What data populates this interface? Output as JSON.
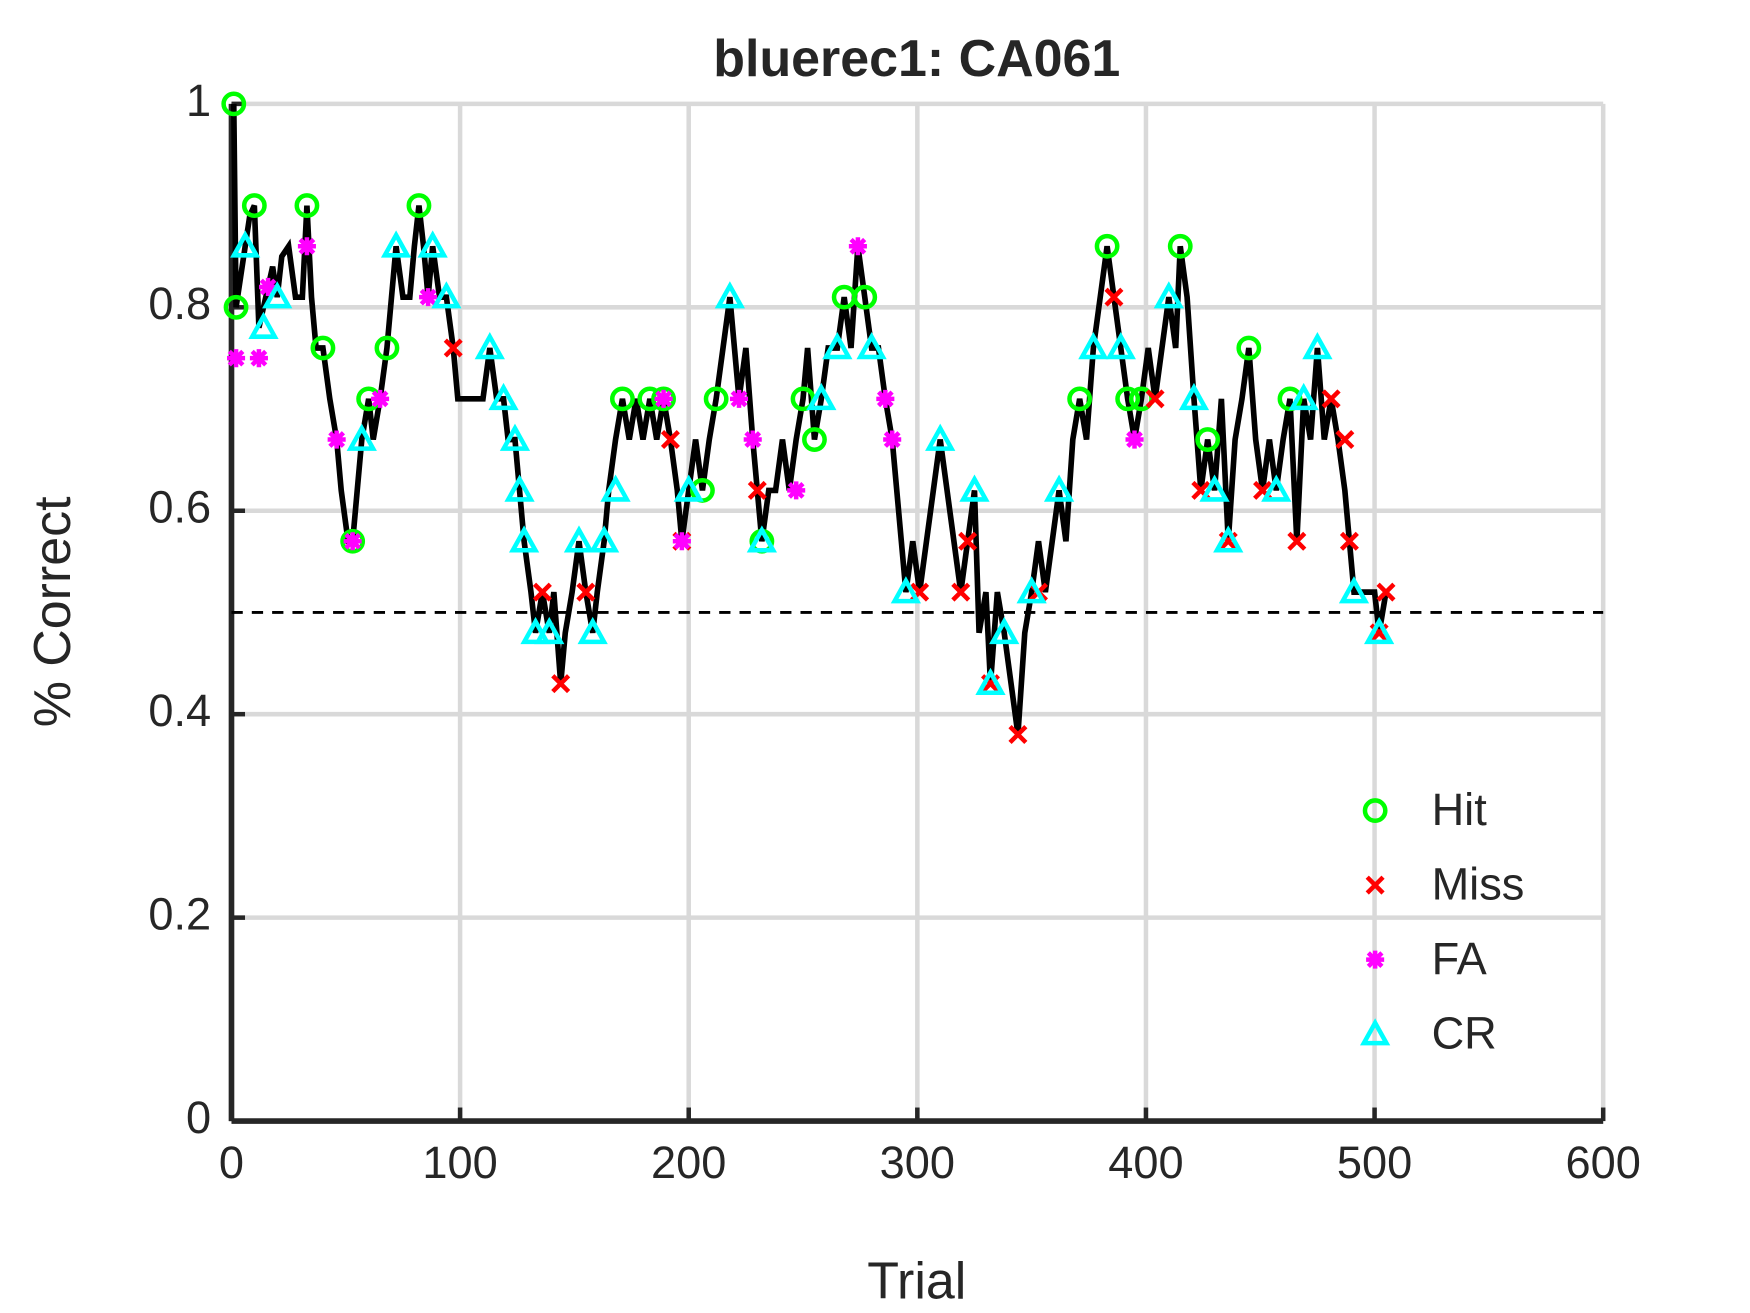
{
  "chart_data": {
    "type": "line",
    "title": "bluerec1: CA061",
    "x_label": "Trial",
    "y_label": "% Correct",
    "xlim": [
      0,
      600
    ],
    "xticks": [
      0,
      100,
      200,
      300,
      400,
      500,
      600
    ],
    "ylim": [
      0,
      1
    ],
    "yticks": [
      0,
      0.2,
      0.4,
      0.6,
      0.8,
      1
    ],
    "grid": true,
    "legend": "lower right",
    "reference_line": 0.5,
    "color": "#000000",
    "x": [
      1,
      2,
      4,
      6,
      8,
      10,
      12,
      14,
      16,
      18,
      20,
      22,
      25,
      28,
      31,
      33,
      35,
      37,
      40,
      43,
      46,
      48,
      51,
      53,
      55,
      57,
      60,
      62,
      65,
      68,
      70,
      72,
      75,
      78,
      80,
      82,
      84,
      86,
      88,
      91,
      94,
      97,
      99,
      103,
      107,
      110,
      113,
      116,
      119,
      121,
      124,
      126,
      128,
      131,
      133,
      136,
      139,
      141,
      144,
      146,
      149,
      152,
      155,
      158,
      160,
      163,
      165,
      168,
      171,
      174,
      177,
      180,
      183,
      186,
      189,
      192,
      195,
      197,
      200,
      203,
      206,
      209,
      212,
      215,
      218,
      220,
      222,
      225,
      228,
      230,
      232,
      235,
      238,
      241,
      244,
      247,
      250,
      252,
      255,
      258,
      261,
      265,
      268,
      271,
      274,
      277,
      280,
      283,
      286,
      289,
      291,
      293,
      295,
      298,
      301,
      304,
      307,
      310,
      313,
      316,
      319,
      322,
      325,
      327,
      330,
      332,
      335,
      338,
      341,
      344,
      347,
      350,
      353,
      356,
      359,
      362,
      365,
      368,
      371,
      374,
      377,
      380,
      383,
      386,
      389,
      392,
      395,
      398,
      401,
      404,
      407,
      410,
      413,
      415,
      418,
      421,
      424,
      427,
      430,
      433,
      436,
      439,
      442,
      445,
      448,
      451,
      454,
      457,
      460,
      463,
      466,
      469,
      472,
      475,
      478,
      481,
      484,
      487,
      489,
      491,
      494,
      497,
      500,
      502,
      505
    ],
    "values": [
      1.0,
      0.8,
      0.83,
      0.86,
      0.89,
      0.9,
      0.78,
      0.8,
      0.82,
      0.84,
      0.81,
      0.85,
      0.86,
      0.81,
      0.81,
      0.9,
      0.81,
      0.76,
      0.76,
      0.71,
      0.67,
      0.62,
      0.57,
      0.57,
      0.62,
      0.67,
      0.71,
      0.67,
      0.71,
      0.76,
      0.81,
      0.86,
      0.81,
      0.81,
      0.86,
      0.9,
      0.86,
      0.81,
      0.86,
      0.81,
      0.81,
      0.76,
      0.71,
      0.71,
      0.71,
      0.71,
      0.76,
      0.71,
      0.71,
      0.67,
      0.67,
      0.62,
      0.57,
      0.52,
      0.48,
      0.52,
      0.48,
      0.52,
      0.43,
      0.48,
      0.52,
      0.57,
      0.52,
      0.48,
      0.52,
      0.57,
      0.62,
      0.67,
      0.71,
      0.67,
      0.71,
      0.67,
      0.71,
      0.67,
      0.71,
      0.67,
      0.62,
      0.57,
      0.62,
      0.67,
      0.62,
      0.67,
      0.71,
      0.76,
      0.81,
      0.76,
      0.71,
      0.76,
      0.67,
      0.62,
      0.57,
      0.62,
      0.62,
      0.67,
      0.62,
      0.67,
      0.71,
      0.76,
      0.67,
      0.71,
      0.76,
      0.76,
      0.81,
      0.76,
      0.86,
      0.81,
      0.76,
      0.76,
      0.71,
      0.67,
      0.62,
      0.57,
      0.52,
      0.57,
      0.52,
      0.57,
      0.62,
      0.67,
      0.62,
      0.57,
      0.52,
      0.57,
      0.62,
      0.48,
      0.52,
      0.43,
      0.52,
      0.48,
      0.43,
      0.38,
      0.48,
      0.52,
      0.57,
      0.52,
      0.57,
      0.62,
      0.57,
      0.67,
      0.71,
      0.67,
      0.76,
      0.81,
      0.86,
      0.81,
      0.76,
      0.71,
      0.67,
      0.71,
      0.76,
      0.71,
      0.76,
      0.81,
      0.76,
      0.86,
      0.81,
      0.71,
      0.62,
      0.67,
      0.62,
      0.71,
      0.57,
      0.67,
      0.71,
      0.76,
      0.67,
      0.62,
      0.67,
      0.62,
      0.67,
      0.71,
      0.57,
      0.71,
      0.67,
      0.76,
      0.67,
      0.71,
      0.67,
      0.62,
      0.57,
      0.52,
      0.52,
      0.52,
      0.52,
      0.48,
      0.52
    ],
    "series": [
      {
        "name": "Hit",
        "color": "#00ff00",
        "marker": "circle",
        "x": [
          1,
          2,
          10,
          33,
          40,
          53,
          60,
          68,
          82,
          171,
          183,
          189,
          206,
          212,
          232,
          250,
          255,
          268,
          277,
          371,
          383,
          392,
          398,
          415,
          427,
          445,
          463
        ],
        "values": [
          1.0,
          0.8,
          0.9,
          0.9,
          0.76,
          0.57,
          0.71,
          0.76,
          0.9,
          0.71,
          0.71,
          0.71,
          0.62,
          0.71,
          0.57,
          0.71,
          0.67,
          0.81,
          0.81,
          0.71,
          0.86,
          0.71,
          0.71,
          0.86,
          0.67,
          0.76,
          0.71
        ]
      },
      {
        "name": "Miss",
        "color": "#ff0000",
        "marker": "x",
        "x": [
          97,
          136,
          144,
          155,
          192,
          197,
          230,
          301,
          319,
          322,
          332,
          344,
          353,
          386,
          404,
          424,
          436,
          451,
          466,
          481,
          487,
          489,
          502,
          505
        ],
        "values": [
          0.76,
          0.52,
          0.43,
          0.52,
          0.67,
          0.57,
          0.62,
          0.52,
          0.52,
          0.57,
          0.43,
          0.38,
          0.52,
          0.81,
          0.71,
          0.62,
          0.57,
          0.62,
          0.57,
          0.71,
          0.67,
          0.57,
          0.48,
          0.52
        ]
      },
      {
        "name": "FA",
        "color": "#ff00ff",
        "marker": "star",
        "x": [
          2,
          12,
          16,
          33,
          46,
          53,
          65,
          86,
          189,
          197,
          222,
          228,
          247,
          274,
          286,
          289,
          395
        ],
        "values": [
          0.75,
          0.75,
          0.82,
          0.86,
          0.67,
          0.57,
          0.71,
          0.81,
          0.71,
          0.57,
          0.71,
          0.67,
          0.62,
          0.86,
          0.71,
          0.67,
          0.67
        ]
      },
      {
        "name": "CR",
        "color": "#00ffff",
        "marker": "triangle",
        "x": [
          6,
          14,
          20,
          57,
          72,
          88,
          94,
          113,
          119,
          124,
          126,
          128,
          133,
          139,
          152,
          158,
          163,
          168,
          200,
          218,
          232,
          258,
          265,
          280,
          295,
          310,
          325,
          332,
          338,
          350,
          362,
          377,
          389,
          410,
          421,
          430,
          436,
          457,
          469,
          475,
          491,
          502
        ],
        "values": [
          0.86,
          0.78,
          0.81,
          0.67,
          0.86,
          0.86,
          0.81,
          0.76,
          0.71,
          0.67,
          0.62,
          0.57,
          0.48,
          0.48,
          0.57,
          0.48,
          0.57,
          0.62,
          0.62,
          0.81,
          0.57,
          0.71,
          0.76,
          0.76,
          0.52,
          0.67,
          0.62,
          0.43,
          0.48,
          0.52,
          0.62,
          0.76,
          0.76,
          0.81,
          0.71,
          0.62,
          0.57,
          0.62,
          0.71,
          0.76,
          0.52,
          0.48
        ]
      }
    ]
  }
}
